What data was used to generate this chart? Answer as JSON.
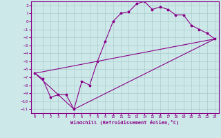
{
  "background_color": "#cde8e8",
  "grid_color": "#aacccc",
  "line_color": "#880088",
  "marker": "*",
  "xlabel": "Windchill (Refroidissement éolien,°C)",
  "xlim": [
    -0.5,
    23.5
  ],
  "ylim": [
    -11.5,
    2.5
  ],
  "yticks": [
    2,
    1,
    0,
    -1,
    -2,
    -3,
    -4,
    -5,
    -6,
    -7,
    -8,
    -9,
    -10,
    -11
  ],
  "xticks": [
    0,
    1,
    2,
    3,
    4,
    5,
    6,
    7,
    8,
    9,
    10,
    11,
    12,
    13,
    14,
    15,
    16,
    17,
    18,
    19,
    20,
    21,
    22,
    23
  ],
  "series": [
    {
      "x": [
        0,
        1,
        2,
        3,
        4,
        5,
        6,
        7,
        8,
        9,
        10,
        11,
        12,
        13,
        14,
        15,
        16,
        17,
        18,
        19,
        20,
        21,
        22,
        23
      ],
      "y": [
        -6.5,
        -7.2,
        -9.5,
        -9.2,
        -9.2,
        -11.0,
        -7.5,
        -8.0,
        -5.0,
        -2.5,
        0.0,
        1.0,
        1.2,
        2.2,
        2.5,
        1.5,
        1.8,
        1.5,
        0.8,
        0.8,
        -0.5,
        -1.0,
        -1.5,
        -2.2
      ]
    },
    {
      "x": [
        0,
        5,
        23
      ],
      "y": [
        -6.5,
        -11.0,
        -2.2
      ]
    },
    {
      "x": [
        0,
        23
      ],
      "y": [
        -6.5,
        -2.2
      ]
    }
  ]
}
